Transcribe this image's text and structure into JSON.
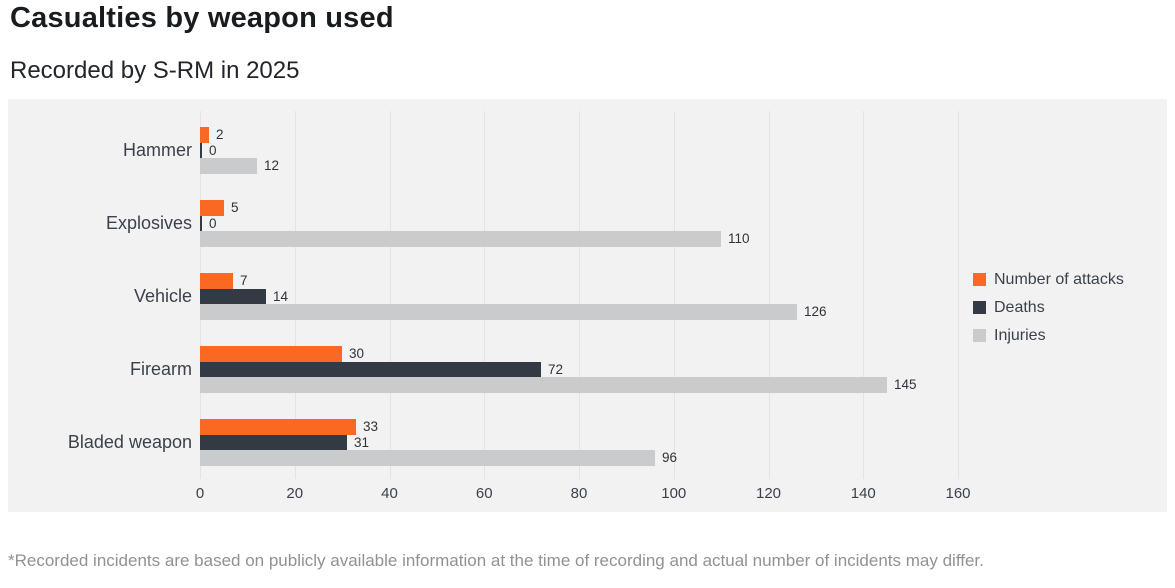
{
  "header": {
    "title": "Casualties by weapon used",
    "subtitle": "Recorded by S-RM in 2025"
  },
  "footnote": "*Recorded incidents are based on publicly available information at the time of recording and actual number of incidents may differ.",
  "colors": {
    "panel_background": "#f2f2f3",
    "gridline": "#e3e3e6",
    "attacks_orange": "#fa6923",
    "deaths_dark": "#343a44",
    "injuries_gray": "#cacbcd",
    "text_dark": "#3b414b",
    "footnote_gray": "#8f9296"
  },
  "chart_data": {
    "type": "bar",
    "orientation": "horizontal",
    "title": "Casualties by weapon used",
    "subtitle": "Recorded by S-RM in 2025",
    "categories": [
      "Hammer",
      "Explosives",
      "Vehicle",
      "Firearm",
      "Bladed weapon"
    ],
    "series": [
      {
        "name": "Number of attacks",
        "color": "#fa6923",
        "values": [
          2,
          5,
          7,
          30,
          33
        ]
      },
      {
        "name": "Deaths",
        "color": "#343a44",
        "values": [
          0,
          0,
          14,
          72,
          31
        ]
      },
      {
        "name": "Injuries",
        "color": "#cacbcd",
        "values": [
          12,
          110,
          126,
          145,
          96
        ]
      }
    ],
    "xlim": [
      0,
      160
    ],
    "xticks": [
      0,
      20,
      40,
      60,
      80,
      100,
      120,
      140,
      160
    ],
    "grid": true,
    "value_labels": true,
    "legend_position": "right"
  }
}
